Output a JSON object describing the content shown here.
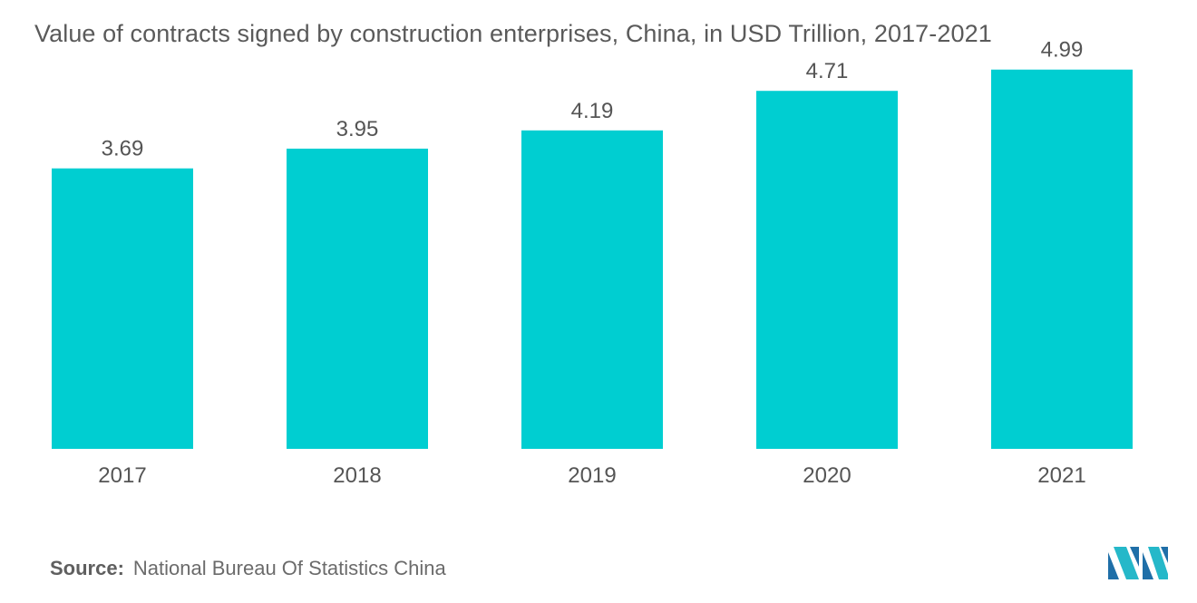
{
  "title": "Value of contracts signed by construction enterprises, China, in USD Trillion, 2017-2021",
  "source": {
    "label": "Source:",
    "text": "National Bureau Of Statistics China"
  },
  "colors": {
    "bar": "#00CED1",
    "text": "#555555",
    "logo_dark": "#1f6fa8",
    "logo_light": "#25b8c9"
  },
  "logo": {
    "icon": "mordor-intelligence-logo-icon"
  },
  "chart_data": {
    "type": "bar",
    "categories": [
      "2017",
      "2018",
      "2019",
      "2020",
      "2021"
    ],
    "values": [
      3.69,
      3.95,
      4.19,
      4.71,
      4.99
    ],
    "data_labels": [
      "3.69",
      "3.95",
      "4.19",
      "4.71",
      "4.99"
    ],
    "title": "Value of contracts signed by construction enterprises, China, in USD Trillion, 2017-2021",
    "xlabel": "",
    "ylabel": "",
    "ylim": [
      0,
      5.5
    ],
    "grid": false,
    "legend": "none"
  }
}
